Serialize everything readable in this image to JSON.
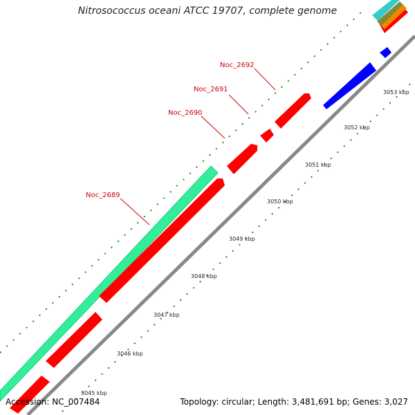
{
  "title": "Nitrosococcus oceani ATCC 19707, complete genome",
  "footer": {
    "accession": "Accession: NC_007484",
    "stats": "Topology: circular; Length: 3,481,691 bp; Genes: 3,027"
  },
  "scale_labels": [
    "3045 kbp",
    "3046 kbp",
    "3047 kbp",
    "3048 kbp",
    "3049 kbp",
    "3050 kbp",
    "3051 kbp",
    "3052 kbp",
    "3053 kbp"
  ],
  "gene_labels": [
    "Noc_2689",
    "Noc_2690",
    "Noc_2691",
    "Noc_2692"
  ],
  "colors": {
    "forward_gene": "#ff0000",
    "reverse_gene": "#0000ff",
    "rna_feature": "#33ee99",
    "backbone": "#888888",
    "ticks": "#007700",
    "label_text": "#cc0000",
    "legend_cyan": "#33cccc",
    "legend_olive": "#888833",
    "legend_orange": "#ee8800"
  }
}
